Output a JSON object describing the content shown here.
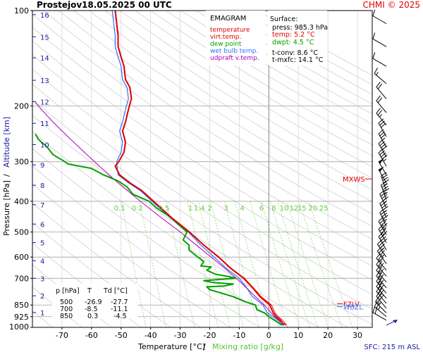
{
  "header": {
    "station": "Prostejov",
    "datetime": "18.05.2025 00 UTC",
    "credit": "CHMI © 2025"
  },
  "legend": {
    "title": "EMAGRAM",
    "items": [
      {
        "label": "temperature",
        "color": "#e00000"
      },
      {
        "label": "virt.temp.",
        "color": "#e00000"
      },
      {
        "label": "dew point",
        "color": "#00a000"
      },
      {
        "label": "wet bulb temp.",
        "color": "#3070ff"
      },
      {
        "label": "udpraft v.temp.",
        "color": "#b000b0"
      }
    ]
  },
  "surface": {
    "title": "Surface:",
    "press": "press: 985.3 hPa",
    "temp": "temp: 5.2 °C",
    "dwpt": "dwpt: 4.5 °C",
    "tconv": "t-conv: 8.6 °C",
    "tmxfc": "t-mxfc: 14.1 °C"
  },
  "levels_table": {
    "headers": [
      "p [hPa]",
      "T",
      "Td [°C]"
    ],
    "rows": [
      [
        "500",
        "-26.9",
        "-27.7"
      ],
      [
        "700",
        "-8.5",
        "-11.1"
      ],
      [
        "850",
        "0.3",
        "-4.5"
      ]
    ]
  },
  "axes": {
    "xlabel_temp": "Temperature [°C]",
    "xlabel_sep": "/",
    "xlabel_mix": "Mixing ratio [g/kg]",
    "ylabel_pressure": "Pressure [hPa]",
    "ylabel_sep": "/",
    "ylabel_alt": "Altitude [km]",
    "sfc_note": "SFC: 215 m ASL"
  },
  "markers": {
    "mxws": "MXWS",
    "fzlv": "FZLV",
    "wbzl": "WBZL"
  },
  "colors": {
    "temp": "#e00000",
    "dew": "#00a000",
    "wetbulb": "#3070ff",
    "updraft": "#b000b0",
    "mix": "#66cc44",
    "dry": "#c8c8c8",
    "alt": "#1a1aa0",
    "grid": "#a0a0a0"
  },
  "chart_data": {
    "type": "line",
    "title": "EMAGRAM",
    "xlim": [
      -80,
      35
    ],
    "ylim": [
      1000,
      100
    ],
    "y_scale": "log",
    "grid": true,
    "x_ticks": [
      -70,
      -60,
      -50,
      -40,
      -30,
      -20,
      -10,
      0,
      10,
      20,
      30
    ],
    "p_ticks": [
      100,
      200,
      300,
      400,
      500,
      600,
      700,
      850,
      925,
      1000
    ],
    "alt_ticks_km": [
      {
        "km": "1",
        "p": 898
      },
      {
        "km": "2",
        "p": 795
      },
      {
        "km": "3",
        "p": 700
      },
      {
        "km": "4",
        "p": 616
      },
      {
        "km": "5",
        "p": 540
      },
      {
        "km": "6",
        "p": 472
      },
      {
        "km": "7",
        "p": 410
      },
      {
        "km": "8",
        "p": 356
      },
      {
        "km": "9",
        "p": 307
      },
      {
        "km": "10",
        "p": 265
      },
      {
        "km": "11",
        "p": 227
      },
      {
        "km": "12",
        "p": 194
      },
      {
        "km": "13",
        "p": 166
      },
      {
        "km": "14",
        "p": 141
      },
      {
        "km": "15",
        "p": 121
      },
      {
        "km": "16",
        "p": 103
      }
    ],
    "mixing_ratio_labels": [
      "0.1",
      "0.2",
      "0.5",
      "1",
      "1.4",
      "2",
      "3",
      "4",
      "6",
      "8",
      "10",
      "12",
      "15",
      "20",
      "25"
    ],
    "mixing_ratio_label_p": 400,
    "mixing_ratio_label_x": [
      -50.5,
      -44.5,
      -35.5,
      -26.5,
      -23.5,
      -20,
      -14.5,
      -9,
      -2.5,
      1.7,
      5.2,
      8.5,
      11.2,
      14.9,
      18.6
    ],
    "series": [
      {
        "name": "temperature",
        "points": [
          [
            985,
            5.2
          ],
          [
            950,
            4
          ],
          [
            925,
            2.5
          ],
          [
            900,
            1.5
          ],
          [
            850,
            0.3
          ],
          [
            800,
            -3
          ],
          [
            750,
            -5.5
          ],
          [
            700,
            -8.5
          ],
          [
            650,
            -13
          ],
          [
            600,
            -17
          ],
          [
            550,
            -22
          ],
          [
            500,
            -26.9
          ],
          [
            450,
            -33
          ],
          [
            400,
            -39
          ],
          [
            370,
            -43
          ],
          [
            350,
            -47
          ],
          [
            330,
            -50.5
          ],
          [
            310,
            -52
          ],
          [
            300,
            -50.8
          ],
          [
            280,
            -49
          ],
          [
            260,
            -48.5
          ],
          [
            240,
            -49.5
          ],
          [
            225,
            -48.5
          ],
          [
            205,
            -47.5
          ],
          [
            190,
            -46.5
          ],
          [
            175,
            -47
          ],
          [
            165,
            -48.5
          ],
          [
            150,
            -49
          ],
          [
            140,
            -50
          ],
          [
            130,
            -51
          ],
          [
            120,
            -51
          ],
          [
            110,
            -51.5
          ],
          [
            100,
            -52
          ]
        ]
      },
      {
        "name": "virt.temp.",
        "points": [
          [
            985,
            6
          ],
          [
            950,
            4.7
          ],
          [
            925,
            3.2
          ],
          [
            900,
            2.1
          ],
          [
            850,
            0.9
          ],
          [
            800,
            -2.6
          ],
          [
            750,
            -5.2
          ],
          [
            700,
            -8.2
          ],
          [
            650,
            -12.8
          ],
          [
            600,
            -16.8
          ],
          [
            550,
            -21.9
          ],
          [
            500,
            -26.8
          ],
          [
            450,
            -32.9
          ],
          [
            400,
            -38.9
          ],
          [
            370,
            -42.9
          ],
          [
            350,
            -46.9
          ],
          [
            330,
            -50.4
          ],
          [
            310,
            -51.9
          ],
          [
            300,
            -50.7
          ],
          [
            280,
            -48.9
          ],
          [
            260,
            -48.4
          ],
          [
            240,
            -49.4
          ],
          [
            225,
            -48.4
          ],
          [
            205,
            -47.4
          ],
          [
            190,
            -46.4
          ],
          [
            175,
            -46.9
          ],
          [
            165,
            -48.4
          ],
          [
            150,
            -48.9
          ],
          [
            140,
            -49.9
          ],
          [
            130,
            -50.9
          ],
          [
            120,
            -50.9
          ],
          [
            110,
            -51.4
          ],
          [
            100,
            -51.9
          ]
        ]
      },
      {
        "name": "wet bulb temp.",
        "points": [
          [
            985,
            4.8
          ],
          [
            950,
            3.2
          ],
          [
            925,
            1.5
          ],
          [
            900,
            -0.5
          ],
          [
            850,
            -2
          ],
          [
            800,
            -5.5
          ],
          [
            750,
            -7.5
          ],
          [
            700,
            -10
          ],
          [
            650,
            -14.5
          ],
          [
            600,
            -18.5
          ],
          [
            550,
            -23
          ],
          [
            500,
            -27.3
          ],
          [
            450,
            -33.5
          ],
          [
            400,
            -39.5
          ],
          [
            370,
            -43.5
          ],
          [
            350,
            -47.5
          ],
          [
            330,
            -51
          ],
          [
            300,
            -51.5
          ],
          [
            280,
            -50
          ],
          [
            260,
            -49.5
          ],
          [
            240,
            -50.5
          ],
          [
            225,
            -49.5
          ],
          [
            205,
            -48.5
          ],
          [
            190,
            -47.5
          ],
          [
            175,
            -48
          ],
          [
            165,
            -49.5
          ],
          [
            150,
            -50
          ],
          [
            140,
            -51
          ],
          [
            130,
            -52
          ],
          [
            120,
            -52
          ],
          [
            110,
            -52.5
          ],
          [
            100,
            -53
          ]
        ]
      },
      {
        "name": "dew point",
        "points": [
          [
            985,
            4.5
          ],
          [
            950,
            2
          ],
          [
            925,
            0
          ],
          [
            900,
            -1.5
          ],
          [
            880,
            -4
          ],
          [
            850,
            -4.5
          ],
          [
            830,
            -8
          ],
          [
            800,
            -12
          ],
          [
            770,
            -18
          ],
          [
            760,
            -20
          ],
          [
            745,
            -21
          ],
          [
            740,
            -15
          ],
          [
            730,
            -12
          ],
          [
            722,
            -19
          ],
          [
            712,
            -22
          ],
          [
            705,
            -16
          ],
          [
            700,
            -11.1
          ],
          [
            690,
            -14
          ],
          [
            680,
            -18
          ],
          [
            660,
            -21
          ],
          [
            645,
            -19.5
          ],
          [
            640,
            -23
          ],
          [
            620,
            -22
          ],
          [
            600,
            -24
          ],
          [
            570,
            -27
          ],
          [
            550,
            -27
          ],
          [
            530,
            -29
          ],
          [
            500,
            -27.7
          ],
          [
            470,
            -31
          ],
          [
            450,
            -33
          ],
          [
            420,
            -38
          ],
          [
            400,
            -40.5
          ],
          [
            380,
            -46
          ],
          [
            360,
            -48
          ],
          [
            345,
            -51
          ],
          [
            330,
            -56
          ],
          [
            315,
            -60
          ],
          [
            305,
            -68
          ],
          [
            300,
            -69
          ],
          [
            285,
            -73
          ],
          [
            270,
            -75
          ],
          [
            255,
            -78
          ],
          [
            245,
            -79
          ]
        ]
      },
      {
        "name": "udpraft v.temp.",
        "points": [
          [
            985,
            6
          ],
          [
            950,
            3.4
          ],
          [
            925,
            2
          ],
          [
            900,
            0.8
          ],
          [
            850,
            -1.5
          ],
          [
            800,
            -4.5
          ],
          [
            750,
            -7.6
          ],
          [
            700,
            -11
          ],
          [
            650,
            -15
          ],
          [
            600,
            -19.5
          ],
          [
            550,
            -24.5
          ],
          [
            500,
            -30
          ],
          [
            450,
            -36.5
          ],
          [
            400,
            -43.5
          ],
          [
            350,
            -51
          ],
          [
            300,
            -59
          ],
          [
            250,
            -68
          ],
          [
            225,
            -73
          ],
          [
            205,
            -77
          ],
          [
            195,
            -79
          ]
        ]
      }
    ],
    "wind_barbs": [
      {
        "p": 985,
        "dir": 240,
        "spd": 5
      },
      {
        "p": 950,
        "dir": 300,
        "spd": 20
      },
      {
        "p": 925,
        "dir": 310,
        "spd": 25
      },
      {
        "p": 900,
        "dir": 315,
        "spd": 25
      },
      {
        "p": 870,
        "dir": 320,
        "spd": 30
      },
      {
        "p": 840,
        "dir": 320,
        "spd": 30
      },
      {
        "p": 810,
        "dir": 320,
        "spd": 30
      },
      {
        "p": 780,
        "dir": 320,
        "spd": 30
      },
      {
        "p": 750,
        "dir": 320,
        "spd": 30
      },
      {
        "p": 720,
        "dir": 320,
        "spd": 30
      },
      {
        "p": 690,
        "dir": 320,
        "spd": 30
      },
      {
        "p": 660,
        "dir": 320,
        "spd": 30
      },
      {
        "p": 630,
        "dir": 325,
        "spd": 35
      },
      {
        "p": 600,
        "dir": 325,
        "spd": 35
      },
      {
        "p": 570,
        "dir": 330,
        "spd": 40
      },
      {
        "p": 540,
        "dir": 330,
        "spd": 40
      },
      {
        "p": 510,
        "dir": 330,
        "spd": 45
      },
      {
        "p": 480,
        "dir": 335,
        "spd": 45
      },
      {
        "p": 450,
        "dir": 335,
        "spd": 45
      },
      {
        "p": 420,
        "dir": 335,
        "spd": 45
      },
      {
        "p": 395,
        "dir": 340,
        "spd": 45
      },
      {
        "p": 370,
        "dir": 340,
        "spd": 45
      },
      {
        "p": 350,
        "dir": 330,
        "spd": 50
      },
      {
        "p": 330,
        "dir": 330,
        "spd": 50
      },
      {
        "p": 310,
        "dir": 330,
        "spd": 45
      },
      {
        "p": 290,
        "dir": 330,
        "spd": 40
      },
      {
        "p": 270,
        "dir": 330,
        "spd": 35
      },
      {
        "p": 250,
        "dir": 330,
        "spd": 30
      },
      {
        "p": 230,
        "dir": 320,
        "spd": 25
      },
      {
        "p": 210,
        "dir": 320,
        "spd": 20
      },
      {
        "p": 190,
        "dir": 320,
        "spd": 20
      },
      {
        "p": 170,
        "dir": 310,
        "spd": 15
      },
      {
        "p": 150,
        "dir": 300,
        "spd": 10
      },
      {
        "p": 130,
        "dir": 300,
        "spd": 10
      },
      {
        "p": 110,
        "dir": 300,
        "spd": 10
      }
    ],
    "markers": [
      {
        "name": "MXWS",
        "p": 340
      },
      {
        "name": "FZLV",
        "p": 842
      },
      {
        "name": "WBZL",
        "p": 860
      }
    ]
  }
}
